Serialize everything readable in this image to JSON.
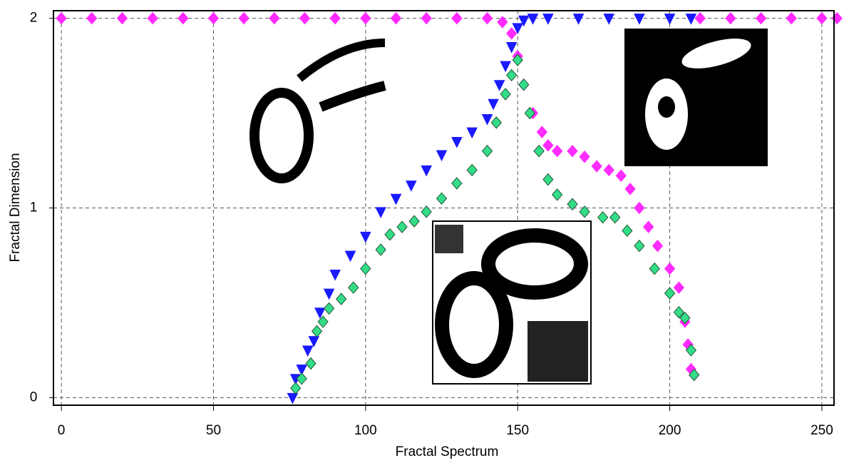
{
  "chart_data": {
    "type": "scatter",
    "x_label": "Fractal Spectrum",
    "y_label": "Fractal Dimension",
    "xlim": [
      -2.6,
      254
    ],
    "ylim": [
      -0.04,
      2.04
    ],
    "xticks": [
      0,
      50,
      100,
      150,
      200,
      250
    ],
    "yticks": [
      0,
      1,
      2
    ],
    "grid": true,
    "series": [
      {
        "color": "#ff2bff",
        "marker": "diamond",
        "x": [
          0,
          10,
          20,
          30,
          40,
          50,
          60,
          70,
          80,
          90,
          100,
          110,
          120,
          130,
          140,
          145,
          148,
          150,
          152,
          155,
          158,
          160,
          163,
          168,
          172,
          176,
          180,
          184,
          187,
          190,
          193,
          196,
          200,
          203,
          205,
          206,
          207,
          208,
          210,
          220,
          230,
          240,
          250,
          255
        ],
        "values": [
          2,
          2,
          2,
          2,
          2,
          2,
          2,
          2,
          2,
          2,
          2,
          2,
          2,
          2,
          2,
          1.98,
          1.92,
          1.8,
          1.65,
          1.5,
          1.4,
          1.33,
          1.3,
          1.3,
          1.27,
          1.22,
          1.2,
          1.17,
          1.1,
          1.0,
          0.9,
          0.8,
          0.68,
          0.58,
          0.4,
          0.28,
          0.15,
          0.12,
          2,
          2,
          2,
          2,
          2,
          2
        ]
      },
      {
        "color": "#1a1aff",
        "marker": "triangle-down",
        "x": [
          76,
          77,
          79,
          81,
          83,
          85,
          88,
          90,
          95,
          100,
          105,
          110,
          115,
          120,
          125,
          130,
          135,
          140,
          142,
          144,
          146,
          148,
          150,
          152,
          155,
          160,
          170,
          180,
          190,
          200,
          207
        ],
        "values": [
          0,
          0.1,
          0.15,
          0.25,
          0.3,
          0.45,
          0.55,
          0.65,
          0.75,
          0.85,
          0.98,
          1.05,
          1.12,
          1.2,
          1.28,
          1.35,
          1.4,
          1.47,
          1.55,
          1.65,
          1.75,
          1.85,
          1.95,
          1.99,
          2,
          2,
          2,
          2,
          2,
          2,
          2
        ]
      },
      {
        "color": "#33dd88",
        "marker": "diamond",
        "x": [
          77,
          79,
          82,
          84,
          86,
          88,
          92,
          96,
          100,
          105,
          108,
          112,
          116,
          120,
          125,
          130,
          135,
          140,
          143,
          146,
          148,
          150,
          152,
          154,
          157,
          160,
          163,
          168,
          172,
          178,
          182,
          186,
          190,
          195,
          200,
          203,
          205,
          207,
          208
        ],
        "values": [
          0.05,
          0.1,
          0.18,
          0.35,
          0.4,
          0.47,
          0.52,
          0.58,
          0.68,
          0.78,
          0.86,
          0.9,
          0.93,
          0.98,
          1.05,
          1.13,
          1.2,
          1.3,
          1.45,
          1.6,
          1.7,
          1.78,
          1.65,
          1.5,
          1.3,
          1.15,
          1.07,
          1.02,
          0.98,
          0.95,
          0.95,
          0.88,
          0.8,
          0.68,
          0.55,
          0.45,
          0.42,
          0.25,
          0.12
        ]
      }
    ]
  }
}
